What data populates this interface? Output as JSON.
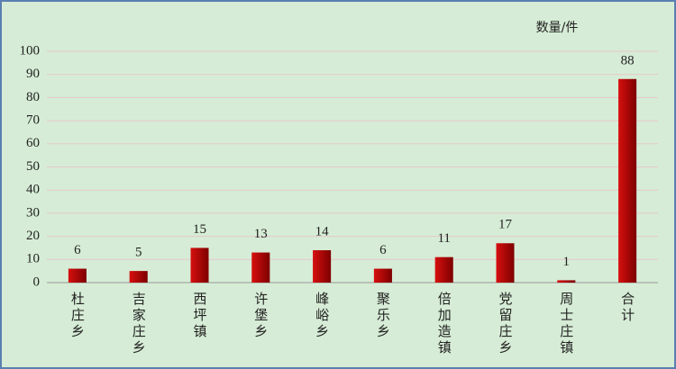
{
  "chart_data": {
    "type": "bar",
    "unit_label": "数量/件",
    "categories": [
      "杜庄乡",
      "吉家庄乡",
      "西坪镇",
      "许堡乡",
      "峰峪乡",
      "聚乐乡",
      "倍加造镇",
      "党留庄乡",
      "周士庄镇",
      "合计"
    ],
    "values": [
      6,
      5,
      15,
      13,
      14,
      6,
      11,
      17,
      1,
      88
    ],
    "color": "#c00000",
    "ylim": [
      0,
      100
    ],
    "yticks": [
      0,
      10,
      20,
      30,
      40,
      50,
      60,
      70,
      80,
      90,
      100
    ],
    "grid": true
  }
}
